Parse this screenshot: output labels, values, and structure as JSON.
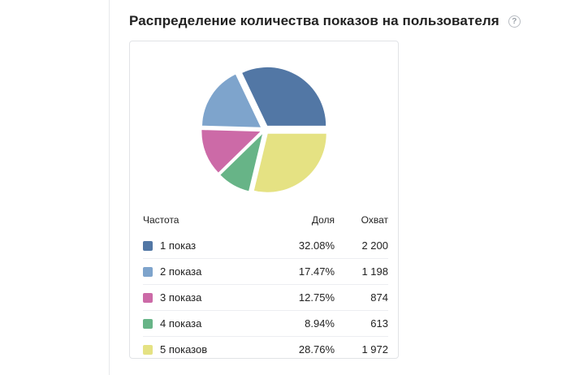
{
  "header": {
    "title": "Распределение количества показов на пользователя",
    "help_label": "?"
  },
  "table": {
    "col_frequency": "Частота",
    "col_share": "Доля",
    "col_reach": "Охват"
  },
  "chart_data": {
    "type": "pie",
    "categories": [
      "1 показ",
      "2 показа",
      "3 показа",
      "4 показа",
      "5 показов"
    ],
    "values": [
      32.08,
      17.47,
      12.75,
      8.94,
      28.76
    ],
    "share_labels": [
      "32.08%",
      "17.47%",
      "12.75%",
      "8.94%",
      "28.76%"
    ],
    "reach": [
      "2 200",
      "1 198",
      "874",
      "613",
      "1 972"
    ],
    "colors": [
      "#5277a5",
      "#7ea4cc",
      "#cc6aa7",
      "#67b487",
      "#e5e283"
    ]
  }
}
